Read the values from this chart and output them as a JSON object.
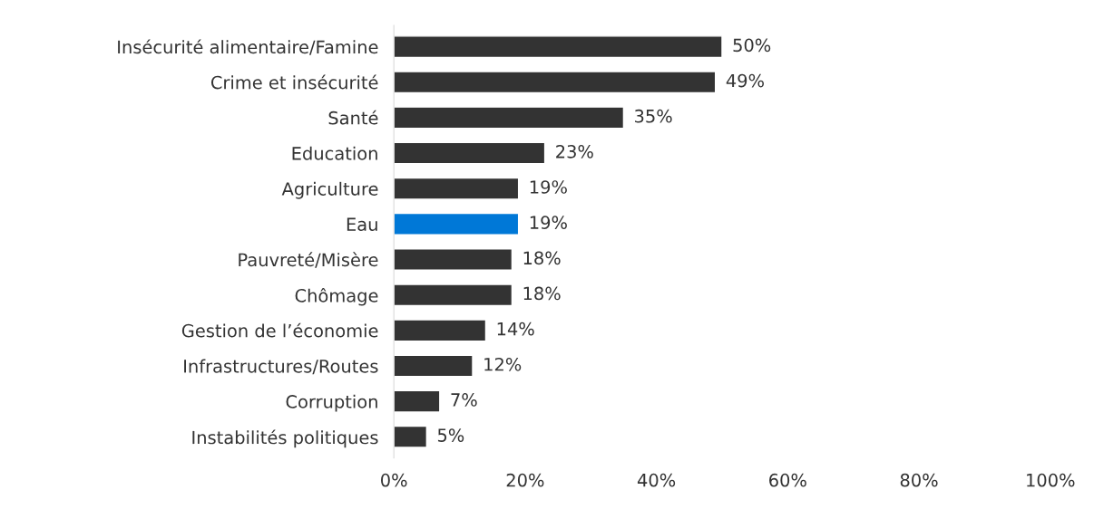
{
  "chart_data": {
    "type": "bar",
    "orientation": "horizontal",
    "categories": [
      "Insécurité alimentaire/Famine",
      "Crime et insécurité",
      "Santé",
      "Education",
      "Agriculture",
      "Eau",
      "Pauvreté/Misère",
      "Chômage",
      "Gestion de l’économie",
      "Infrastructures/Routes",
      "Corruption",
      "Instabilités politiques"
    ],
    "values": [
      50,
      49,
      35,
      23,
      19,
      19,
      18,
      18,
      14,
      12,
      7,
      5
    ],
    "value_labels": [
      "50%",
      "49%",
      "35%",
      "23%",
      "19%",
      "19%",
      "18%",
      "18%",
      "14%",
      "12%",
      "7%",
      "5%"
    ],
    "colors": [
      "#333333",
      "#333333",
      "#333333",
      "#333333",
      "#333333",
      "#0078d7",
      "#333333",
      "#333333",
      "#333333",
      "#333333",
      "#333333",
      "#333333"
    ],
    "xlim": [
      0,
      100
    ],
    "xticks": [
      {
        "value": 0,
        "label": "0%"
      },
      {
        "value": 20,
        "label": "20%"
      },
      {
        "value": 40,
        "label": "40%"
      },
      {
        "value": 60,
        "label": "60%"
      },
      {
        "value": 80,
        "label": "80%"
      },
      {
        "value": 100,
        "label": "100%"
      }
    ],
    "grid": false,
    "legend": false
  }
}
